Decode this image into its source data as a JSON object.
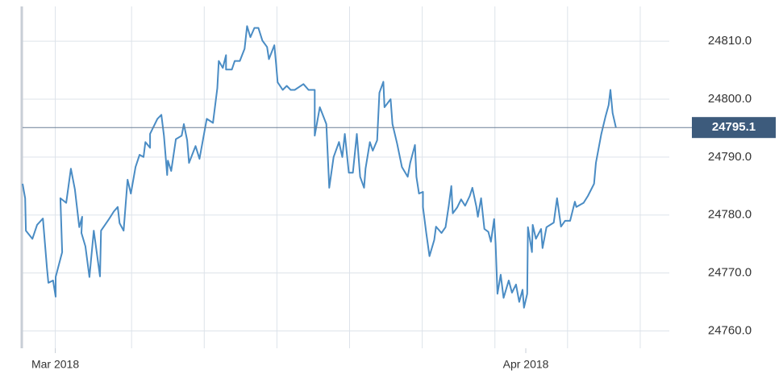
{
  "chart_data": {
    "type": "line",
    "color": "#4a8cc4",
    "grid": true,
    "xlim": [
      0,
      178
    ],
    "xticks": [
      {
        "value": 9,
        "label": "Mar 2018"
      },
      {
        "value": 138.5,
        "label": "Apr 2018"
      }
    ],
    "xgrid": [
      9,
      30,
      50,
      70,
      90,
      110,
      130,
      150,
      170
    ],
    "ylim": [
      24757,
      24816
    ],
    "yticks": [
      {
        "value": 24760,
        "label": "24760.0"
      },
      {
        "value": 24770,
        "label": "24770.0"
      },
      {
        "value": 24780,
        "label": "24780.0"
      },
      {
        "value": 24790,
        "label": "24790.0"
      },
      {
        "value": 24800,
        "label": "24800.0"
      },
      {
        "value": 24810,
        "label": "24810.0"
      }
    ],
    "last_value": 24795.1,
    "x": [
      0,
      0.7,
      0.9,
      2.7,
      4,
      5.6,
      6.7,
      7.1,
      8.4,
      9.1,
      9.1,
      10.9,
      10.4,
      12,
      13.3,
      14.4,
      15.6,
      16.4,
      16.2,
      17.3,
      18.4,
      19.6,
      21.3,
      21.6,
      23.8,
      25.1,
      26.2,
      26.7,
      27.8,
      28.9,
      29.8,
      31.1,
      32.2,
      33.3,
      33.8,
      35.1,
      35.1,
      37.1,
      38.2,
      38.9,
      39.8,
      40,
      40.9,
      42.2,
      43.8,
      44.4,
      45.3,
      45.8,
      47.6,
      48.7,
      50.7,
      52.4,
      53.6,
      54,
      55.1,
      56,
      56,
      57.6,
      58.4,
      59.8,
      61.1,
      61.8,
      62.7,
      63.8,
      64.9,
      66,
      67.3,
      67.8,
      69.3,
      69.8,
      70.2,
      71.6,
      72.7,
      73.8,
      74.9,
      77.3,
      78.7,
      80.4,
      80.4,
      81.8,
      83.6,
      84.4,
      85.6,
      87.1,
      88,
      88.7,
      89.8,
      90.9,
      92,
      92.9,
      94,
      94.4,
      95.6,
      96.4,
      97.6,
      98.2,
      99.3,
      99.6,
      101.3,
      101.8,
      103.1,
      104.4,
      106,
      106.7,
      108,
      108.4,
      109.1,
      110.2,
      110.2,
      111.1,
      112,
      113.3,
      113.8,
      115.3,
      116.4,
      117.3,
      118,
      118.4,
      119.6,
      120.7,
      121.8,
      123.1,
      123.8,
      124.9,
      125.3,
      126.2,
      127.1,
      128.2,
      128.9,
      129.8,
      130.2,
      130.7,
      131.6,
      132.4,
      133.8,
      134.7,
      135.8,
      136.7,
      137.6,
      138,
      138.9,
      139.1,
      140.2,
      140.4,
      141.3,
      142.7,
      143.1,
      144.2,
      146.2,
      147.1,
      148.2,
      149.3,
      150.7,
      152,
      152.4,
      154.4,
      155.6,
      157.3,
      157.8,
      159.3,
      160.4,
      161.3,
      161.8,
      162.4,
      163.3
    ],
    "values": [
      24785.4,
      24782.9,
      24777.3,
      24775.9,
      24778.3,
      24779.4,
      24770.9,
      24768.3,
      24768.7,
      24765.9,
      24769.3,
      24773.6,
      24782.9,
      24782.1,
      24788,
      24784.4,
      24777.9,
      24779.7,
      24776.9,
      24774.6,
      24769.3,
      24777.3,
      24769.4,
      24777.3,
      24779.3,
      24780.6,
      24781.4,
      24778.6,
      24777.3,
      24786.1,
      24783.7,
      24788.3,
      24790.4,
      24790,
      24792.6,
      24791.6,
      24794,
      24796.6,
      24797.3,
      24793.7,
      24786.9,
      24789.4,
      24787.6,
      24793.1,
      24793.7,
      24795.7,
      24792.9,
      24789,
      24791.9,
      24789.7,
      24796.6,
      24795.9,
      24801.9,
      24806.6,
      24805.4,
      24807.6,
      24805.1,
      24805.1,
      24806.6,
      24806.6,
      24808.7,
      24812.6,
      24810.7,
      24812.3,
      24812.3,
      24810.1,
      24809,
      24806.9,
      24809.3,
      24805.9,
      24802.9,
      24801.6,
      24802.3,
      24801.6,
      24801.6,
      24802.6,
      24801.6,
      24801.6,
      24793.7,
      24798.6,
      24795.7,
      24784.7,
      24790,
      24792.6,
      24790,
      24794,
      24787.3,
      24787.3,
      24794,
      24786.6,
      24784.7,
      24788,
      24792.6,
      24791.1,
      24792.9,
      24801.1,
      24803,
      24798.6,
      24800,
      24795.7,
      24792.3,
      24788.3,
      24786.6,
      24789,
      24792.1,
      24786.6,
      24783.7,
      24784,
      24781.4,
      24776.9,
      24772.9,
      24775.7,
      24778,
      24776.9,
      24777.9,
      24781.6,
      24785,
      24780.3,
      24781.3,
      24782.7,
      24781.6,
      24783.3,
      24784.7,
      24781.4,
      24779.7,
      24782.9,
      24777.6,
      24777.1,
      24775.4,
      24779.3,
      24775,
      24766.4,
      24769.7,
      24765.7,
      24768.7,
      24766.6,
      24768,
      24765,
      24767.1,
      24764,
      24766.4,
      24777.9,
      24773.6,
      24778.3,
      24775.9,
      24777.6,
      24774.3,
      24777.9,
      24778.7,
      24782.9,
      24778,
      24779,
      24779,
      24782.3,
      24781.4,
      24782.1,
      24783.3,
      24785.4,
      24789,
      24794,
      24796.9,
      24799,
      24801.6,
      24797.6,
      24795.1
    ]
  }
}
